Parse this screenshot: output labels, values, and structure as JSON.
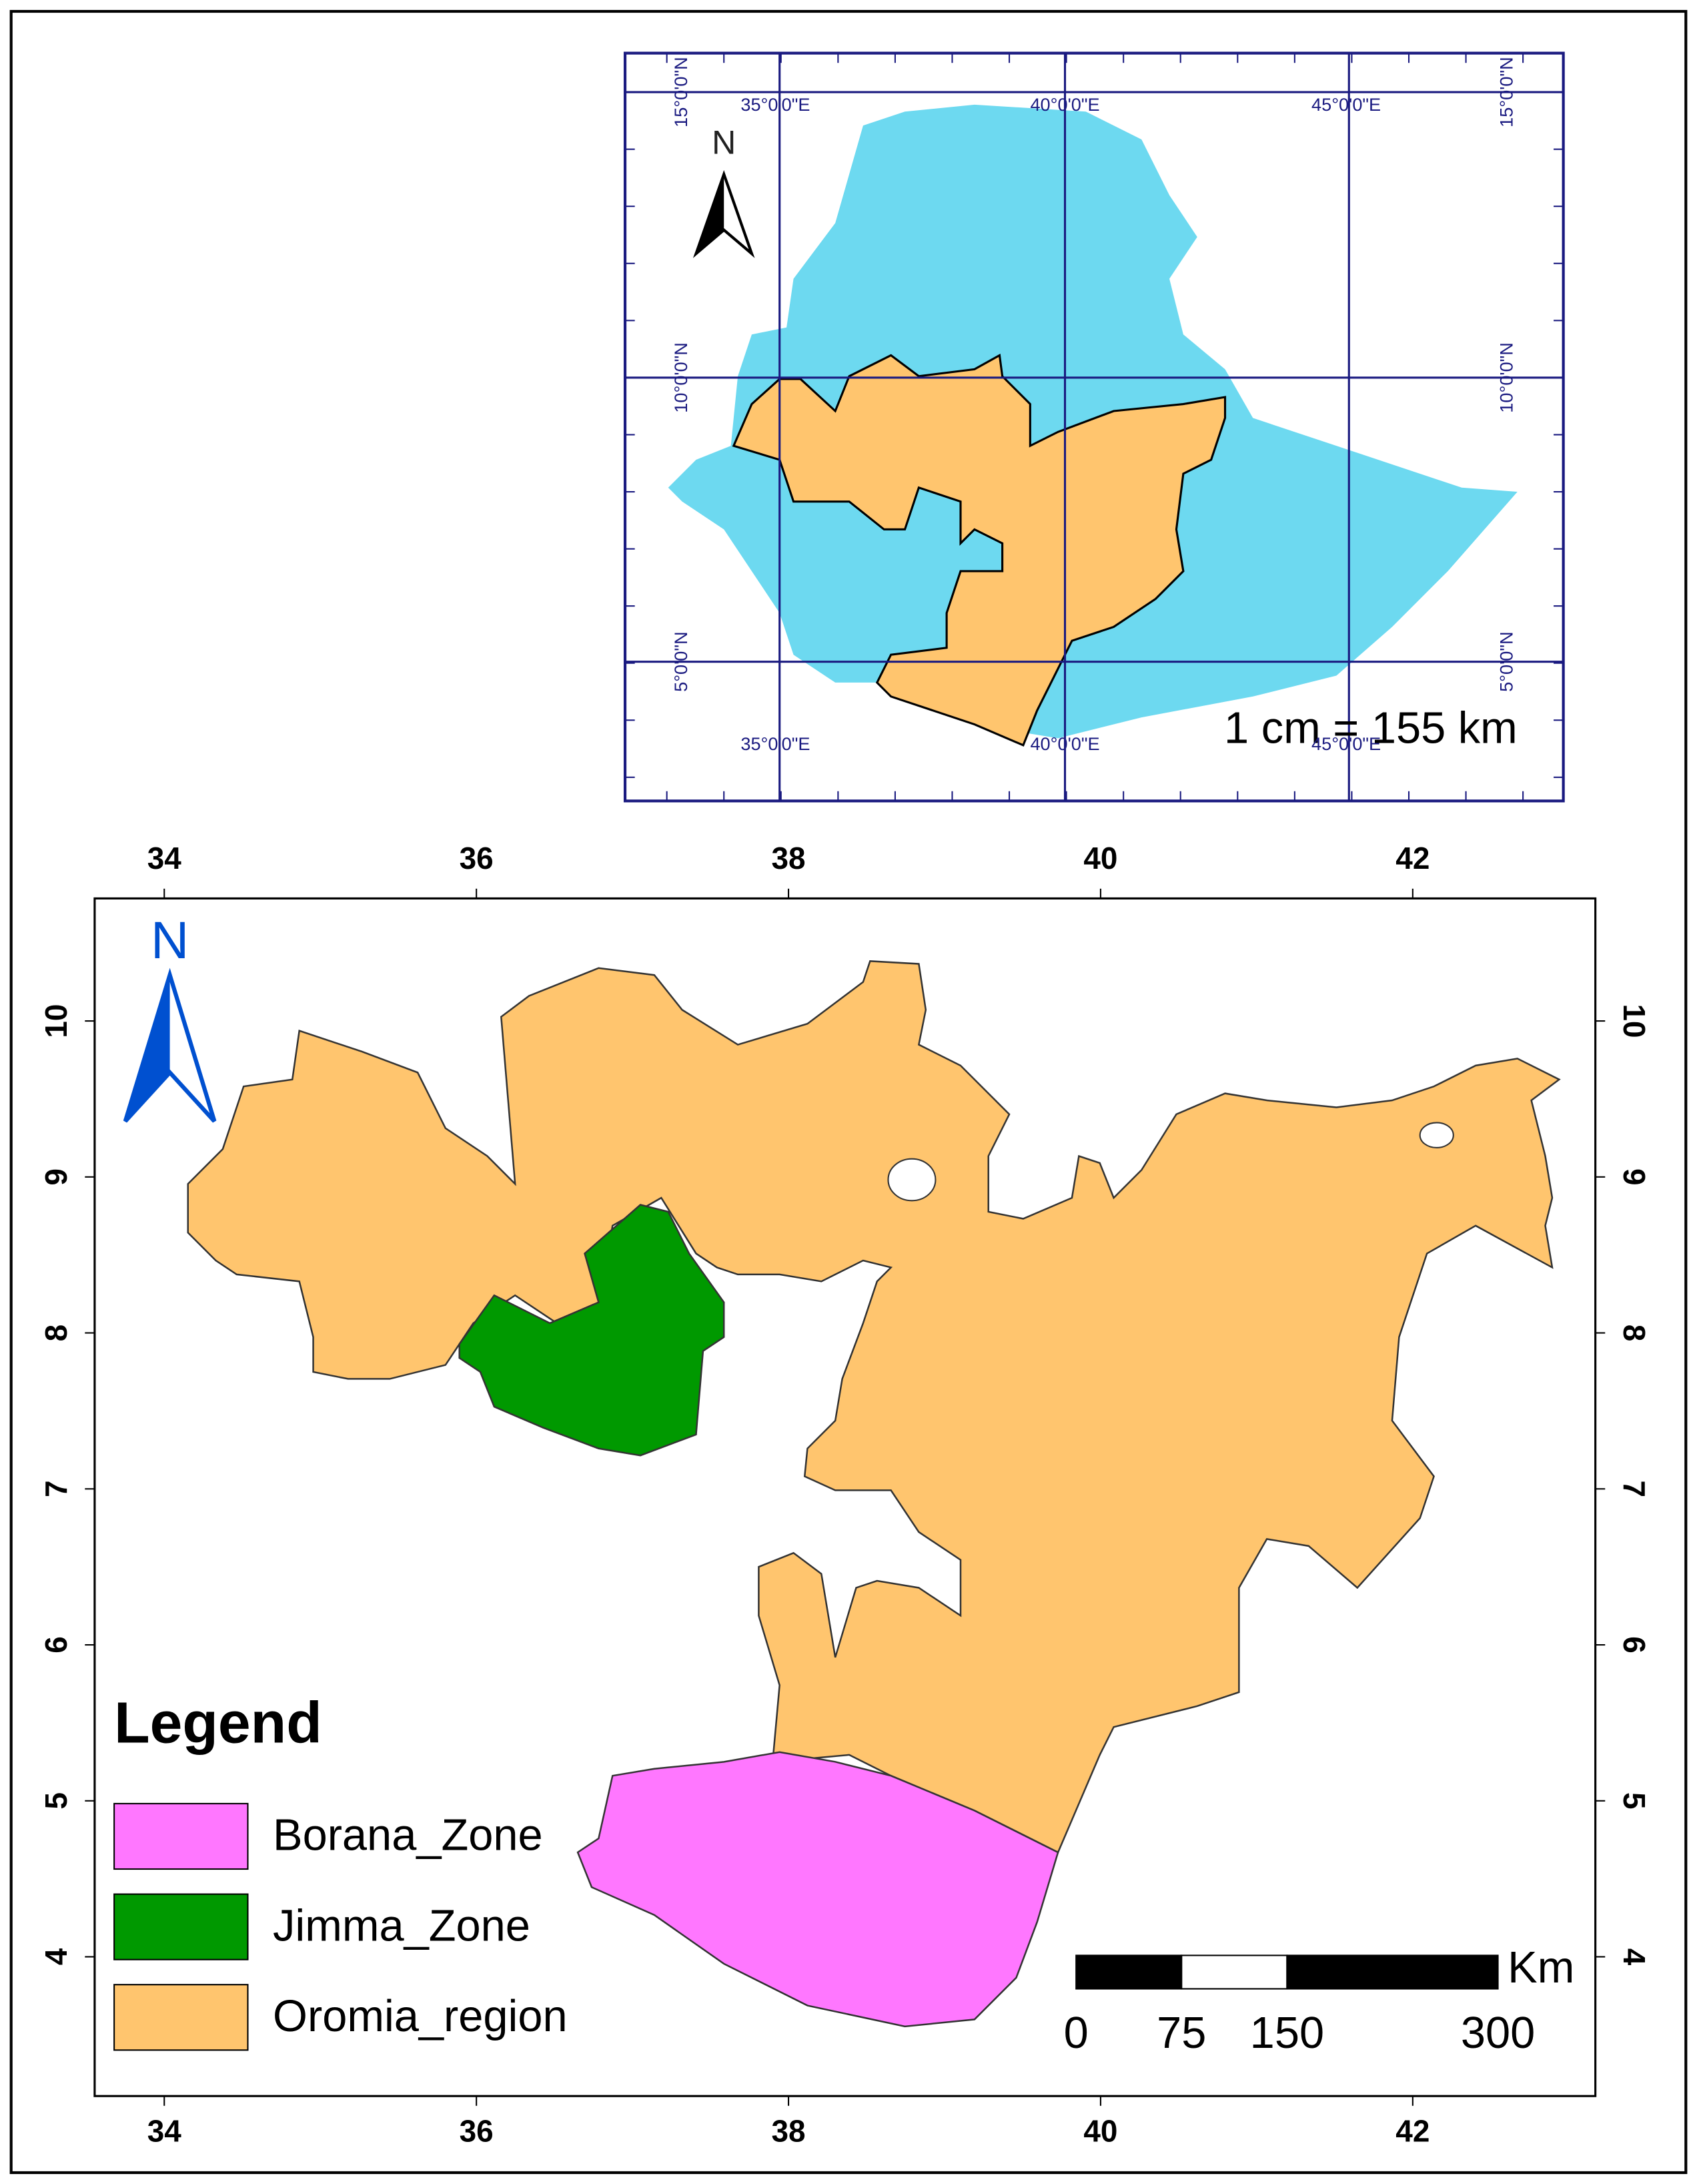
{
  "inset": {
    "lon_labels": [
      "35°0'0\"E",
      "40°0'0\"E",
      "45°0'0\"E"
    ],
    "lat_labels": [
      "15°0'0\"N",
      "10°0'0\"N",
      "5°0'0\"N"
    ],
    "north": "N",
    "scale_text": "1 cm = 155 km",
    "country_color": "#6dd9f0"
  },
  "main": {
    "xticks": [
      34,
      36,
      38,
      40,
      42
    ],
    "yticks": [
      4,
      5,
      6,
      7,
      8,
      9,
      10
    ],
    "north": "N"
  },
  "legend": {
    "title": "Legend",
    "items": [
      {
        "label": "Borana_Zone",
        "color": "#ff77ff"
      },
      {
        "label": "Jimma_Zone",
        "color": "#009900"
      },
      {
        "label": "Oromia_region",
        "color": "#ffc56e"
      }
    ]
  },
  "scale_bar": {
    "unit": "Km",
    "ticks": [
      0,
      75,
      150,
      300
    ]
  }
}
